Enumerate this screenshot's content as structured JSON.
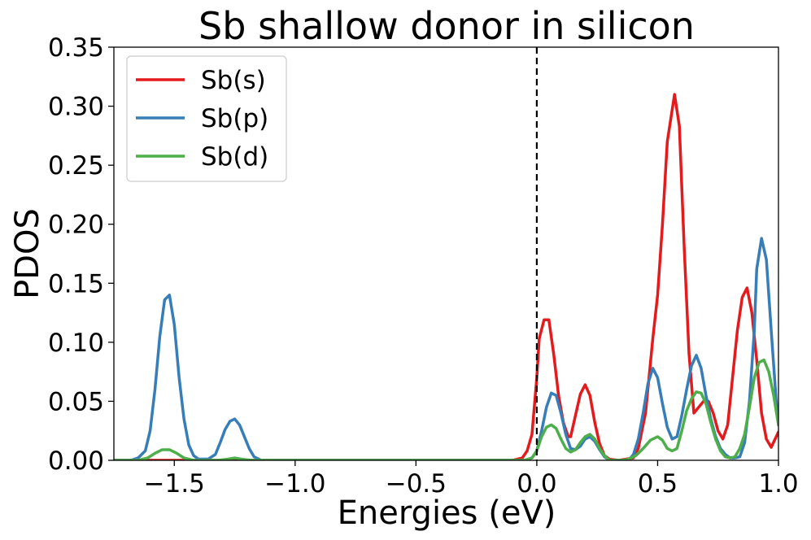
{
  "chart_data": {
    "type": "line",
    "title": "Sb shallow donor in silicon",
    "xlabel": "Energies (eV)",
    "ylabel": "PDOS",
    "xlim": [
      -1.75,
      1.0
    ],
    "ylim": [
      0.0,
      0.35
    ],
    "xticks": [
      -1.5,
      -1.0,
      -0.5,
      0.0,
      0.5,
      1.0
    ],
    "xtick_labels": [
      "−1.5",
      "−1.0",
      "−0.5",
      "0.0",
      "0.5",
      "1.0"
    ],
    "yticks": [
      0.0,
      0.05,
      0.1,
      0.15,
      0.2,
      0.25,
      0.3,
      0.35
    ],
    "ytick_labels": [
      "0.00",
      "0.05",
      "0.10",
      "0.15",
      "0.20",
      "0.25",
      "0.30",
      "0.35"
    ],
    "fermi_level": 0.0,
    "legend_position": "top-left",
    "grid": false,
    "series": [
      {
        "name": "Sb(s)",
        "color": "#e41a1c",
        "points": [
          [
            -1.75,
            0
          ],
          [
            -0.1,
            0
          ],
          [
            -0.06,
            0.002
          ],
          [
            -0.04,
            0.008
          ],
          [
            -0.02,
            0.022
          ],
          [
            0.0,
            0.07
          ],
          [
            0.01,
            0.103
          ],
          [
            0.03,
            0.119
          ],
          [
            0.05,
            0.119
          ],
          [
            0.07,
            0.09
          ],
          [
            0.09,
            0.055
          ],
          [
            0.11,
            0.032
          ],
          [
            0.13,
            0.02
          ],
          [
            0.14,
            0.02
          ],
          [
            0.16,
            0.038
          ],
          [
            0.18,
            0.056
          ],
          [
            0.2,
            0.064
          ],
          [
            0.22,
            0.055
          ],
          [
            0.24,
            0.032
          ],
          [
            0.26,
            0.014
          ],
          [
            0.28,
            0.004
          ],
          [
            0.3,
            0.001
          ],
          [
            0.34,
            0
          ],
          [
            0.4,
            0.002
          ],
          [
            0.42,
            0.01
          ],
          [
            0.45,
            0.04
          ],
          [
            0.48,
            0.103
          ],
          [
            0.5,
            0.14
          ],
          [
            0.52,
            0.2
          ],
          [
            0.54,
            0.27
          ],
          [
            0.57,
            0.31
          ],
          [
            0.59,
            0.283
          ],
          [
            0.61,
            0.18
          ],
          [
            0.63,
            0.09
          ],
          [
            0.65,
            0.04
          ],
          [
            0.67,
            0.045
          ],
          [
            0.69,
            0.05
          ],
          [
            0.71,
            0.05
          ],
          [
            0.73,
            0.04
          ],
          [
            0.75,
            0.025
          ],
          [
            0.77,
            0.018
          ],
          [
            0.79,
            0.03
          ],
          [
            0.81,
            0.07
          ],
          [
            0.83,
            0.11
          ],
          [
            0.85,
            0.138
          ],
          [
            0.87,
            0.146
          ],
          [
            0.89,
            0.125
          ],
          [
            0.91,
            0.085
          ],
          [
            0.93,
            0.04
          ],
          [
            0.95,
            0.018
          ],
          [
            0.97,
            0.011
          ],
          [
            1.0,
            0.024
          ]
        ]
      },
      {
        "name": "Sb(p)",
        "color": "#377eb8",
        "points": [
          [
            -1.75,
            0
          ],
          [
            -1.68,
            0
          ],
          [
            -1.65,
            0.002
          ],
          [
            -1.62,
            0.008
          ],
          [
            -1.6,
            0.025
          ],
          [
            -1.58,
            0.06
          ],
          [
            -1.56,
            0.105
          ],
          [
            -1.54,
            0.136
          ],
          [
            -1.52,
            0.14
          ],
          [
            -1.5,
            0.115
          ],
          [
            -1.48,
            0.07
          ],
          [
            -1.46,
            0.035
          ],
          [
            -1.44,
            0.013
          ],
          [
            -1.42,
            0.004
          ],
          [
            -1.4,
            0.001
          ],
          [
            -1.36,
            0.001
          ],
          [
            -1.33,
            0.005
          ],
          [
            -1.31,
            0.015
          ],
          [
            -1.29,
            0.026
          ],
          [
            -1.27,
            0.033
          ],
          [
            -1.25,
            0.035
          ],
          [
            -1.23,
            0.03
          ],
          [
            -1.21,
            0.02
          ],
          [
            -1.19,
            0.01
          ],
          [
            -1.17,
            0.003
          ],
          [
            -1.14,
            0
          ],
          [
            -0.05,
            0
          ],
          [
            -0.02,
            0.002
          ],
          [
            0.0,
            0.008
          ],
          [
            0.02,
            0.025
          ],
          [
            0.04,
            0.045
          ],
          [
            0.06,
            0.057
          ],
          [
            0.08,
            0.055
          ],
          [
            0.1,
            0.04
          ],
          [
            0.12,
            0.022
          ],
          [
            0.14,
            0.01
          ],
          [
            0.16,
            0.009
          ],
          [
            0.18,
            0.012
          ],
          [
            0.2,
            0.018
          ],
          [
            0.22,
            0.02
          ],
          [
            0.24,
            0.016
          ],
          [
            0.26,
            0.009
          ],
          [
            0.28,
            0.003
          ],
          [
            0.3,
            0
          ],
          [
            0.38,
            0
          ],
          [
            0.4,
            0.005
          ],
          [
            0.42,
            0.018
          ],
          [
            0.44,
            0.04
          ],
          [
            0.46,
            0.065
          ],
          [
            0.48,
            0.078
          ],
          [
            0.5,
            0.07
          ],
          [
            0.52,
            0.048
          ],
          [
            0.54,
            0.028
          ],
          [
            0.56,
            0.018
          ],
          [
            0.58,
            0.02
          ],
          [
            0.6,
            0.038
          ],
          [
            0.62,
            0.06
          ],
          [
            0.64,
            0.08
          ],
          [
            0.66,
            0.089
          ],
          [
            0.68,
            0.078
          ],
          [
            0.7,
            0.055
          ],
          [
            0.72,
            0.035
          ],
          [
            0.74,
            0.02
          ],
          [
            0.76,
            0.01
          ],
          [
            0.78,
            0.005
          ],
          [
            0.8,
            0.002
          ],
          [
            0.82,
            0.002
          ],
          [
            0.84,
            0.003
          ],
          [
            0.86,
            0.015
          ],
          [
            0.88,
            0.05
          ],
          [
            0.9,
            0.11
          ],
          [
            0.91,
            0.162
          ],
          [
            0.93,
            0.188
          ],
          [
            0.95,
            0.17
          ],
          [
            0.97,
            0.11
          ],
          [
            0.99,
            0.052
          ],
          [
            1.0,
            0.03
          ]
        ]
      },
      {
        "name": "Sb(d)",
        "color": "#4daf4a",
        "points": [
          [
            -1.75,
            0
          ],
          [
            -1.65,
            0
          ],
          [
            -1.61,
            0.002
          ],
          [
            -1.58,
            0.006
          ],
          [
            -1.55,
            0.009
          ],
          [
            -1.52,
            0.009
          ],
          [
            -1.49,
            0.006
          ],
          [
            -1.46,
            0.002
          ],
          [
            -1.42,
            0
          ],
          [
            -1.32,
            0
          ],
          [
            -1.28,
            0.001
          ],
          [
            -1.25,
            0.002
          ],
          [
            -1.22,
            0.001
          ],
          [
            -1.18,
            0
          ],
          [
            -0.05,
            0
          ],
          [
            -0.02,
            0.002
          ],
          [
            0.0,
            0.008
          ],
          [
            0.02,
            0.02
          ],
          [
            0.04,
            0.028
          ],
          [
            0.06,
            0.03
          ],
          [
            0.08,
            0.027
          ],
          [
            0.1,
            0.018
          ],
          [
            0.12,
            0.01
          ],
          [
            0.14,
            0.007
          ],
          [
            0.16,
            0.009
          ],
          [
            0.18,
            0.015
          ],
          [
            0.2,
            0.02
          ],
          [
            0.22,
            0.022
          ],
          [
            0.24,
            0.018
          ],
          [
            0.26,
            0.01
          ],
          [
            0.28,
            0.004
          ],
          [
            0.3,
            0
          ],
          [
            0.36,
            0
          ],
          [
            0.38,
            0.001
          ],
          [
            0.41,
            0.004
          ],
          [
            0.44,
            0.01
          ],
          [
            0.47,
            0.017
          ],
          [
            0.5,
            0.02
          ],
          [
            0.52,
            0.017
          ],
          [
            0.54,
            0.01
          ],
          [
            0.56,
            0.008
          ],
          [
            0.58,
            0.01
          ],
          [
            0.6,
            0.025
          ],
          [
            0.62,
            0.042
          ],
          [
            0.64,
            0.052
          ],
          [
            0.66,
            0.058
          ],
          [
            0.68,
            0.057
          ],
          [
            0.7,
            0.048
          ],
          [
            0.72,
            0.032
          ],
          [
            0.74,
            0.018
          ],
          [
            0.76,
            0.008
          ],
          [
            0.78,
            0.003
          ],
          [
            0.8,
            0.002
          ],
          [
            0.82,
            0.003
          ],
          [
            0.84,
            0.01
          ],
          [
            0.86,
            0.022
          ],
          [
            0.88,
            0.045
          ],
          [
            0.9,
            0.07
          ],
          [
            0.92,
            0.083
          ],
          [
            0.94,
            0.085
          ],
          [
            0.96,
            0.075
          ],
          [
            0.98,
            0.055
          ],
          [
            1.0,
            0.03
          ]
        ]
      }
    ]
  }
}
